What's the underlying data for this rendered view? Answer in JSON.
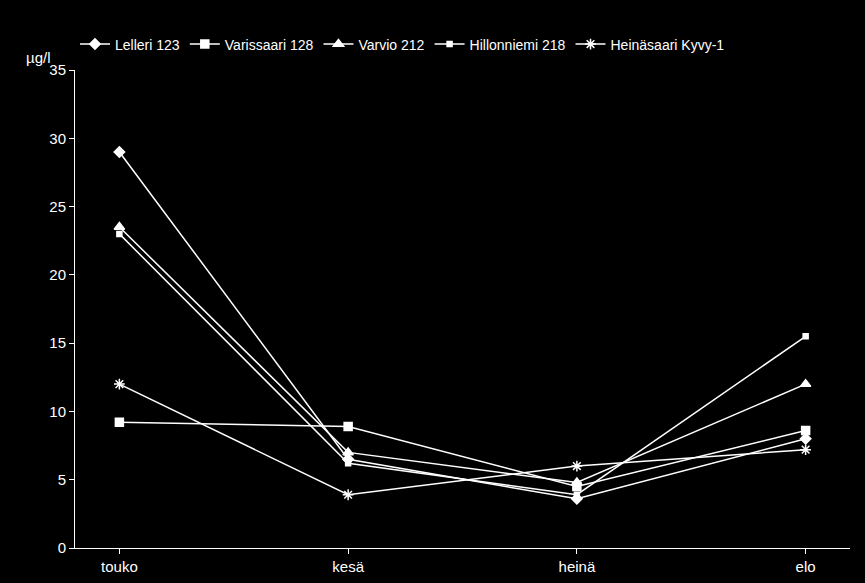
{
  "chart_data": {
    "type": "line",
    "y_label": "µg/l",
    "categories": [
      "touko",
      "kesä",
      "heinä",
      "elo"
    ],
    "series": [
      {
        "name": "Lelleri 123",
        "color": "#ffffff",
        "marker": "diamond",
        "values": [
          29.0,
          6.5,
          3.6,
          8.0
        ]
      },
      {
        "name": "Varissaari 128",
        "color": "#ffffff",
        "marker": "square",
        "values": [
          9.2,
          8.9,
          4.5,
          8.6
        ]
      },
      {
        "name": "Varvio 212",
        "color": "#ffffff",
        "marker": "triangle",
        "values": [
          23.5,
          7.0,
          4.8,
          12.0
        ]
      },
      {
        "name": "Hillonniemi 218",
        "color": "#ffffff",
        "marker": "small-square",
        "values": [
          23.0,
          6.2,
          3.9,
          15.5
        ]
      },
      {
        "name": "Heinäsaari Kyvy-1",
        "color": "#ffffff",
        "marker": "asterisk",
        "values": [
          12.0,
          3.9,
          6.0,
          7.2
        ]
      }
    ],
    "ylim": [
      0,
      35
    ],
    "yticks": [
      0,
      5,
      10,
      15,
      20,
      25,
      30,
      35
    ],
    "grid": false,
    "legend": "top"
  }
}
